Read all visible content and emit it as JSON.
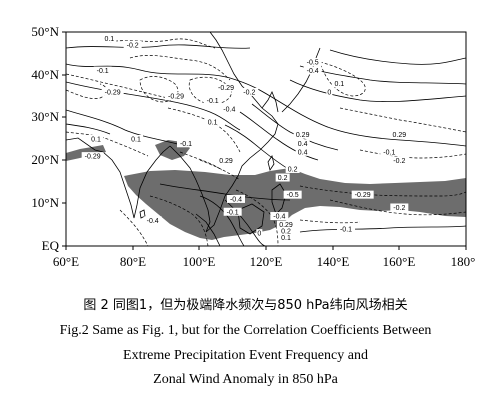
{
  "map": {
    "lat_labels": [
      "50°N",
      "40°N",
      "30°N",
      "20°N",
      "10°N",
      "EQ"
    ],
    "lon_labels": [
      "60°E",
      "80°E",
      "100°E",
      "120°E",
      "140°E",
      "160°E",
      "180°"
    ],
    "lon_range": [
      60,
      180
    ],
    "lat_range": [
      0,
      50
    ],
    "shading_color": "#6d6d6d",
    "shading_meaning": "significant correlation region (shaded)",
    "contour_labels": [
      {
        "text": "0.1",
        "lon": 73,
        "lat": 48.5
      },
      {
        "text": "-0.2",
        "lon": 80,
        "lat": 47
      },
      {
        "text": "-0.1",
        "lon": 71,
        "lat": 41
      },
      {
        "text": "-0.29",
        "lon": 74,
        "lat": 36
      },
      {
        "text": "-0.29",
        "lon": 93,
        "lat": 35
      },
      {
        "text": "-0.29",
        "lon": 108,
        "lat": 37
      },
      {
        "text": "-0.1",
        "lon": 104,
        "lat": 34
      },
      {
        "text": "-0.2",
        "lon": 115,
        "lat": 36
      },
      {
        "text": "-0.4",
        "lon": 109,
        "lat": 32
      },
      {
        "text": "0.1",
        "lon": 104,
        "lat": 29
      },
      {
        "text": "-0.5",
        "lon": 134,
        "lat": 43
      },
      {
        "text": "-0.4",
        "lon": 134,
        "lat": 41
      },
      {
        "text": "0",
        "lon": 139,
        "lat": 36
      },
      {
        "text": "0.1",
        "lon": 142,
        "lat": 38
      },
      {
        "text": "0.29",
        "lon": 131,
        "lat": 26
      },
      {
        "text": "0.4",
        "lon": 131,
        "lat": 24
      },
      {
        "text": "0.4",
        "lon": 131,
        "lat": 22
      },
      {
        "text": "0.29",
        "lon": 160,
        "lat": 26
      },
      {
        "text": "-0.1",
        "lon": 157,
        "lat": 22
      },
      {
        "text": "-0.2",
        "lon": 160,
        "lat": 20
      },
      {
        "text": "0.1",
        "lon": 69,
        "lat": 25
      },
      {
        "text": "0.1",
        "lon": 81,
        "lat": 25
      },
      {
        "text": "-0.29",
        "lon": 68,
        "lat": 21
      },
      {
        "text": "-0.1",
        "lon": 96,
        "lat": 24
      },
      {
        "text": "0.29",
        "lon": 108,
        "lat": 20
      },
      {
        "text": "0.2",
        "lon": 128,
        "lat": 18
      },
      {
        "text": "0.2",
        "lon": 125,
        "lat": 16
      },
      {
        "text": "-0.5",
        "lon": 128,
        "lat": 12
      },
      {
        "text": "-0.4",
        "lon": 111,
        "lat": 11
      },
      {
        "text": "-0.4",
        "lon": 86,
        "lat": 6
      },
      {
        "text": "-0.1",
        "lon": 110,
        "lat": 8
      },
      {
        "text": "-0.4",
        "lon": 124,
        "lat": 7
      },
      {
        "text": "0.29",
        "lon": 126,
        "lat": 5
      },
      {
        "text": "0.2",
        "lon": 126,
        "lat": 3.5
      },
      {
        "text": "0.1",
        "lon": 126,
        "lat": 2
      },
      {
        "text": "0",
        "lon": 118,
        "lat": 3
      },
      {
        "text": "-0.29",
        "lon": 149,
        "lat": 12
      },
      {
        "text": "-0.2",
        "lon": 160,
        "lat": 9
      },
      {
        "text": "-0.1",
        "lon": 144,
        "lat": 4
      }
    ]
  },
  "caption": {
    "cn": "图 2   同图1，但为极端降水频次与850 hPa纬向风场相关",
    "en_line1": "Fig.2   Same as Fig. 1, but for the Correlation Coefficients Between",
    "en_line2": "Extreme Precipitation Event Frequency and",
    "en_line3": "Zonal Wind Anomaly in 850 hPa"
  }
}
